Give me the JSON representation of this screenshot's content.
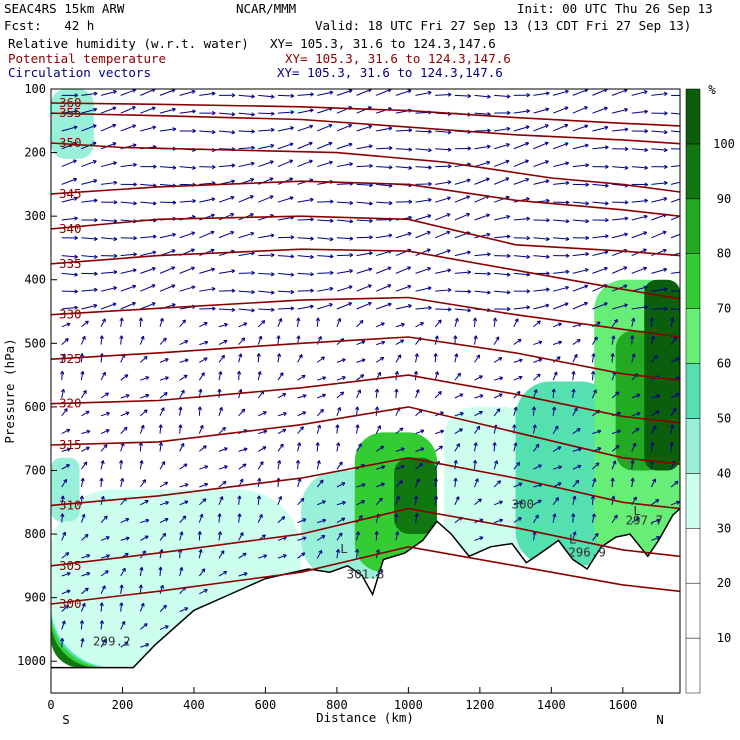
{
  "header": {
    "model": "SEAC4RS 15km ARW",
    "center": "NCAR/MMM",
    "init": "Init: 00 UTC Thu 26 Sep 13",
    "fcst": "Fcst:   42 h",
    "valid": "Valid: 18 UTC Fri 27 Sep 13 (13 CDT Fri 27 Sep 13)",
    "fields": [
      {
        "name": "Relative humidity (w.r.t. water)",
        "xy": "XY= 105.3, 31.6 to 124.3,147.6",
        "color": "#000000"
      },
      {
        "name": "Potential temperature",
        "xy": "XY= 105.3, 31.6 to 124.3,147.6",
        "color": "#8b0000"
      },
      {
        "name": "Circulation vectors",
        "xy": "XY= 105.3, 31.6 to 124.3,147.6",
        "color": "#00008b"
      }
    ]
  },
  "colors": {
    "theta": "#8b0000",
    "vectors": "#00008b",
    "rh_scale": [
      "#ffffff",
      "#ffffff",
      "#ffffff",
      "#ccffee",
      "#99f0d8",
      "#55e0b0",
      "#66ee77",
      "#33cc33",
      "#22aa22",
      "#117711",
      "#0b5e0b"
    ]
  },
  "chart_data": {
    "type": "heatmap",
    "xlabel": "Distance (km)",
    "ylabel": "Pressure (hPa)",
    "xlim": [
      0,
      1760
    ],
    "ylim": [
      1050,
      100
    ],
    "x_ticks": [
      "0",
      "200",
      "400",
      "600",
      "800",
      "1000",
      "1200",
      "1400",
      "1600"
    ],
    "x_tick_values": [
      0,
      200,
      400,
      600,
      800,
      1000,
      1200,
      1400,
      1600
    ],
    "y_ticks": [
      "100",
      "200",
      "300",
      "400",
      "500",
      "600",
      "700",
      "800",
      "900",
      "1000"
    ],
    "y_tick_values": [
      100,
      200,
      300,
      400,
      500,
      600,
      700,
      800,
      900,
      1000
    ],
    "x_end_labels": {
      "left": "S",
      "right": "N"
    },
    "colorbar": {
      "unit": "%",
      "levels": [
        0,
        10,
        20,
        30,
        40,
        50,
        60,
        70,
        80,
        90,
        100,
        110
      ],
      "labels": [
        "10",
        "20",
        "30",
        "40",
        "50",
        "60",
        "70",
        "80",
        "90",
        "100"
      ]
    },
    "terrain": [
      [
        0,
        1010
      ],
      [
        100,
        1010
      ],
      [
        230,
        1010
      ],
      [
        290,
        975
      ],
      [
        400,
        920
      ],
      [
        500,
        895
      ],
      [
        600,
        870
      ],
      [
        680,
        860
      ],
      [
        720,
        855
      ],
      [
        780,
        860
      ],
      [
        830,
        850
      ],
      [
        870,
        865
      ],
      [
        900,
        895
      ],
      [
        930,
        840
      ],
      [
        990,
        830
      ],
      [
        1040,
        810
      ],
      [
        1080,
        780
      ],
      [
        1120,
        800
      ],
      [
        1170,
        835
      ],
      [
        1230,
        820
      ],
      [
        1290,
        815
      ],
      [
        1330,
        845
      ],
      [
        1370,
        830
      ],
      [
        1420,
        810
      ],
      [
        1460,
        840
      ],
      [
        1500,
        855
      ],
      [
        1540,
        820
      ],
      [
        1580,
        805
      ],
      [
        1620,
        800
      ],
      [
        1670,
        835
      ],
      [
        1700,
        810
      ],
      [
        1740,
        770
      ],
      [
        1760,
        760
      ]
    ],
    "theta_contours": [
      {
        "value": 360,
        "label": "360",
        "pts": [
          [
            0,
            122
          ],
          [
            300,
            124
          ],
          [
            700,
            128
          ],
          [
            1000,
            134
          ],
          [
            1300,
            145
          ],
          [
            1600,
            154
          ],
          [
            1760,
            158
          ]
        ]
      },
      {
        "value": 355,
        "label": "355",
        "pts": [
          [
            0,
            138
          ],
          [
            300,
            142
          ],
          [
            700,
            148
          ],
          [
            1000,
            160
          ],
          [
            1300,
            172
          ],
          [
            1600,
            180
          ],
          [
            1760,
            186
          ]
        ]
      },
      {
        "value": 350,
        "label": "350",
        "pts": [
          [
            0,
            185
          ],
          [
            200,
            192
          ],
          [
            500,
            196
          ],
          [
            800,
            200
          ],
          [
            1100,
            215
          ],
          [
            1400,
            240
          ],
          [
            1600,
            250
          ],
          [
            1760,
            262
          ]
        ]
      },
      {
        "value": 345,
        "label": "345",
        "pts": [
          [
            0,
            265
          ],
          [
            300,
            254
          ],
          [
            700,
            245
          ],
          [
            1000,
            250
          ],
          [
            1300,
            275
          ],
          [
            1600,
            290
          ],
          [
            1760,
            300
          ]
        ]
      },
      {
        "value": 340,
        "label": "340",
        "pts": [
          [
            0,
            320
          ],
          [
            300,
            305
          ],
          [
            700,
            300
          ],
          [
            1000,
            305
          ],
          [
            1300,
            345
          ],
          [
            1600,
            355
          ],
          [
            1760,
            362
          ]
        ]
      },
      {
        "value": 335,
        "label": "335",
        "pts": [
          [
            0,
            375
          ],
          [
            300,
            362
          ],
          [
            700,
            352
          ],
          [
            1000,
            355
          ],
          [
            1300,
            385
          ],
          [
            1600,
            415
          ],
          [
            1760,
            430
          ]
        ]
      },
      {
        "value": 330,
        "label": "330",
        "pts": [
          [
            0,
            455
          ],
          [
            300,
            445
          ],
          [
            700,
            432
          ],
          [
            1000,
            428
          ],
          [
            1300,
            455
          ],
          [
            1600,
            478
          ],
          [
            1760,
            490
          ]
        ]
      },
      {
        "value": 325,
        "label": "325",
        "pts": [
          [
            0,
            525
          ],
          [
            300,
            515
          ],
          [
            700,
            500
          ],
          [
            1000,
            490
          ],
          [
            1300,
            515
          ],
          [
            1600,
            548
          ],
          [
            1760,
            558
          ]
        ]
      },
      {
        "value": 320,
        "label": "320",
        "pts": [
          [
            0,
            595
          ],
          [
            300,
            590
          ],
          [
            700,
            570
          ],
          [
            1000,
            550
          ],
          [
            1300,
            580
          ],
          [
            1600,
            615
          ],
          [
            1760,
            625
          ]
        ]
      },
      {
        "value": 315,
        "label": "315",
        "pts": [
          [
            0,
            660
          ],
          [
            300,
            655
          ],
          [
            700,
            628
          ],
          [
            1000,
            600
          ],
          [
            1300,
            640
          ],
          [
            1600,
            680
          ],
          [
            1760,
            690
          ]
        ]
      },
      {
        "value": 310,
        "label": "310",
        "pts": [
          [
            0,
            755
          ],
          [
            300,
            740
          ],
          [
            700,
            712
          ],
          [
            1000,
            680
          ],
          [
            1300,
            712
          ],
          [
            1600,
            750
          ],
          [
            1760,
            760
          ]
        ]
      },
      {
        "value": 305,
        "label": "305",
        "pts": [
          [
            0,
            850
          ],
          [
            300,
            830
          ],
          [
            700,
            800
          ],
          [
            1000,
            760
          ],
          [
            1300,
            790
          ],
          [
            1600,
            825
          ],
          [
            1760,
            835
          ]
        ]
      },
      {
        "value": 300,
        "label": "300",
        "pts": [
          [
            0,
            910
          ],
          [
            300,
            890
          ],
          [
            700,
            860
          ],
          [
            1000,
            820
          ],
          [
            1300,
            850
          ],
          [
            1600,
            880
          ],
          [
            1760,
            890
          ]
        ]
      }
    ],
    "annotations": [
      {
        "text": "299.2",
        "x": 170,
        "y": 975
      },
      {
        "text": "301.8",
        "x": 880,
        "y": 870
      },
      {
        "text": "300",
        "x": 1320,
        "y": 760
      },
      {
        "text": "296.9",
        "x": 1500,
        "y": 835
      },
      {
        "text": "297.7",
        "x": 1660,
        "y": 785
      },
      {
        "text": "L",
        "x": 820,
        "y": 830
      },
      {
        "text": "L",
        "x": 1460,
        "y": 815
      },
      {
        "text": "L",
        "x": 1640,
        "y": 770
      }
    ],
    "rh_cells": [
      {
        "x0": 0,
        "x1": 260,
        "p0": 880,
        "p1": 1010,
        "v": 95
      },
      {
        "x0": 0,
        "x1": 400,
        "p0": 800,
        "p1": 1010,
        "v": 75
      },
      {
        "x0": 0,
        "x1": 550,
        "p0": 760,
        "p1": 1010,
        "v": 55
      },
      {
        "x0": 0,
        "x1": 700,
        "p0": 730,
        "p1": 1010,
        "v": 35
      },
      {
        "x0": 700,
        "x1": 1000,
        "p0": 700,
        "p1": 870,
        "v": 45
      },
      {
        "x0": 850,
        "x1": 1080,
        "p0": 640,
        "p1": 860,
        "v": 75
      },
      {
        "x0": 960,
        "x1": 1080,
        "p0": 680,
        "p1": 800,
        "v": 95
      },
      {
        "x0": 1100,
        "x1": 1350,
        "p0": 600,
        "p1": 840,
        "v": 35
      },
      {
        "x0": 1300,
        "x1": 1580,
        "p0": 560,
        "p1": 850,
        "v": 55
      },
      {
        "x0": 1520,
        "x1": 1760,
        "p0": 400,
        "p1": 840,
        "v": 65
      },
      {
        "x0": 1580,
        "x1": 1720,
        "p0": 480,
        "p1": 700,
        "v": 85
      },
      {
        "x0": 1660,
        "x1": 1760,
        "p0": 400,
        "p1": 700,
        "v": 100
      },
      {
        "x0": 0,
        "x1": 80,
        "p0": 680,
        "p1": 780,
        "v": 45
      },
      {
        "x0": 0,
        "x1": 120,
        "p0": 100,
        "p1": 210,
        "v": 40
      }
    ]
  }
}
